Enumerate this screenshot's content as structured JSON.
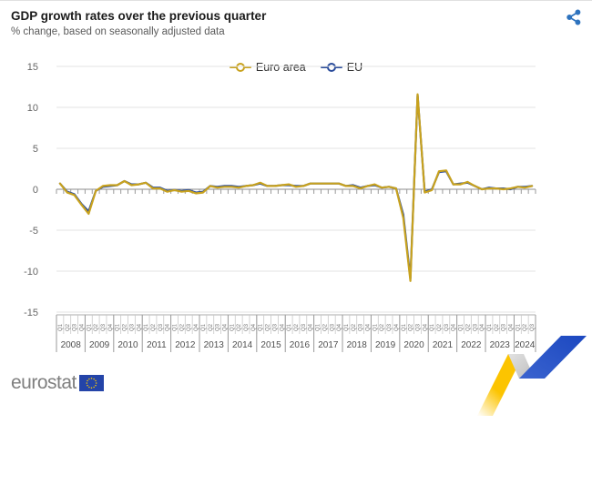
{
  "header": {
    "title": "GDP growth rates over the previous quarter",
    "subtitle": "% change, based on seasonally adjusted data"
  },
  "share": {
    "icon": "share-icon",
    "color": "#2e73be"
  },
  "legend": [
    {
      "label": "Euro area",
      "color": "#c8a21e"
    },
    {
      "label": "EU",
      "color": "#2a4c9b"
    }
  ],
  "footer": {
    "logo_text": "eurostat"
  },
  "colors": {
    "grid": "#e3e3e3",
    "zero_axis": "#8c8c8c",
    "tick": "#9a9a9a",
    "band_top": "#ababab",
    "year_separator": "#9a9a9a",
    "quarter_separator": "#c8c8c8",
    "y_label": "#666666",
    "year_label": "#4f4f4f",
    "quarter_label": "#757575",
    "flag_blue": "#2444a8",
    "flag_stars": "#ffcc00"
  },
  "chart_data": {
    "type": "line",
    "title": "GDP growth rates over the previous quarter",
    "subtitle": "% change, based on seasonally adjusted data",
    "ylabel": "",
    "xlabel": "",
    "ylim": [
      -15,
      15
    ],
    "yticks": [
      15,
      10,
      5,
      0,
      -5,
      -10,
      -15
    ],
    "grid": true,
    "legend_position": "top-center",
    "quarter_labels": [
      "Q1",
      "Q2",
      "Q3",
      "Q4"
    ],
    "years": [
      {
        "label": "2008",
        "quarters": 4
      },
      {
        "label": "2009",
        "quarters": 4
      },
      {
        "label": "2010",
        "quarters": 4
      },
      {
        "label": "2011",
        "quarters": 4
      },
      {
        "label": "2012",
        "quarters": 4
      },
      {
        "label": "2013",
        "quarters": 4
      },
      {
        "label": "2014",
        "quarters": 4
      },
      {
        "label": "2015",
        "quarters": 4
      },
      {
        "label": "2016",
        "quarters": 4
      },
      {
        "label": "2017",
        "quarters": 4
      },
      {
        "label": "2018",
        "quarters": 4
      },
      {
        "label": "2019",
        "quarters": 4
      },
      {
        "label": "2020",
        "quarters": 4
      },
      {
        "label": "2021",
        "quarters": 4
      },
      {
        "label": "2022",
        "quarters": 4
      },
      {
        "label": "2023",
        "quarters": 4
      },
      {
        "label": "2024",
        "quarters": 3
      }
    ],
    "series": [
      {
        "name": "EU",
        "color": "#2a4c9b",
        "values": [
          0.7,
          -0.3,
          -0.6,
          -1.8,
          -2.7,
          -0.2,
          0.3,
          0.4,
          0.5,
          1.0,
          0.6,
          0.6,
          0.8,
          0.2,
          0.2,
          -0.2,
          -0.1,
          -0.2,
          -0.1,
          -0.4,
          -0.3,
          0.4,
          0.3,
          0.4,
          0.4,
          0.3,
          0.4,
          0.5,
          0.7,
          0.4,
          0.4,
          0.5,
          0.5,
          0.4,
          0.4,
          0.7,
          0.7,
          0.7,
          0.7,
          0.7,
          0.4,
          0.5,
          0.2,
          0.4,
          0.5,
          0.2,
          0.3,
          0.1,
          -3.1,
          -10.9,
          11.5,
          -0.3,
          0.0,
          2.1,
          2.2,
          0.6,
          0.7,
          0.8,
          0.4,
          0.0,
          0.2,
          0.1,
          0.1,
          0.0,
          0.3,
          0.3,
          0.4
        ]
      },
      {
        "name": "Euro area",
        "color": "#c8a21e",
        "values": [
          0.7,
          -0.4,
          -0.7,
          -1.9,
          -3.0,
          -0.2,
          0.4,
          0.5,
          0.5,
          1.0,
          0.5,
          0.6,
          0.8,
          0.1,
          0.1,
          -0.3,
          -0.1,
          -0.3,
          -0.2,
          -0.5,
          -0.4,
          0.4,
          0.2,
          0.3,
          0.3,
          0.2,
          0.4,
          0.5,
          0.8,
          0.4,
          0.4,
          0.5,
          0.6,
          0.3,
          0.4,
          0.7,
          0.7,
          0.7,
          0.7,
          0.7,
          0.4,
          0.4,
          0.1,
          0.4,
          0.6,
          0.2,
          0.3,
          0.1,
          -3.5,
          -11.2,
          11.6,
          -0.4,
          -0.1,
          2.2,
          2.3,
          0.6,
          0.6,
          0.9,
          0.4,
          0.0,
          0.1,
          0.1,
          0.0,
          0.1,
          0.3,
          0.2,
          0.4
        ]
      }
    ]
  }
}
